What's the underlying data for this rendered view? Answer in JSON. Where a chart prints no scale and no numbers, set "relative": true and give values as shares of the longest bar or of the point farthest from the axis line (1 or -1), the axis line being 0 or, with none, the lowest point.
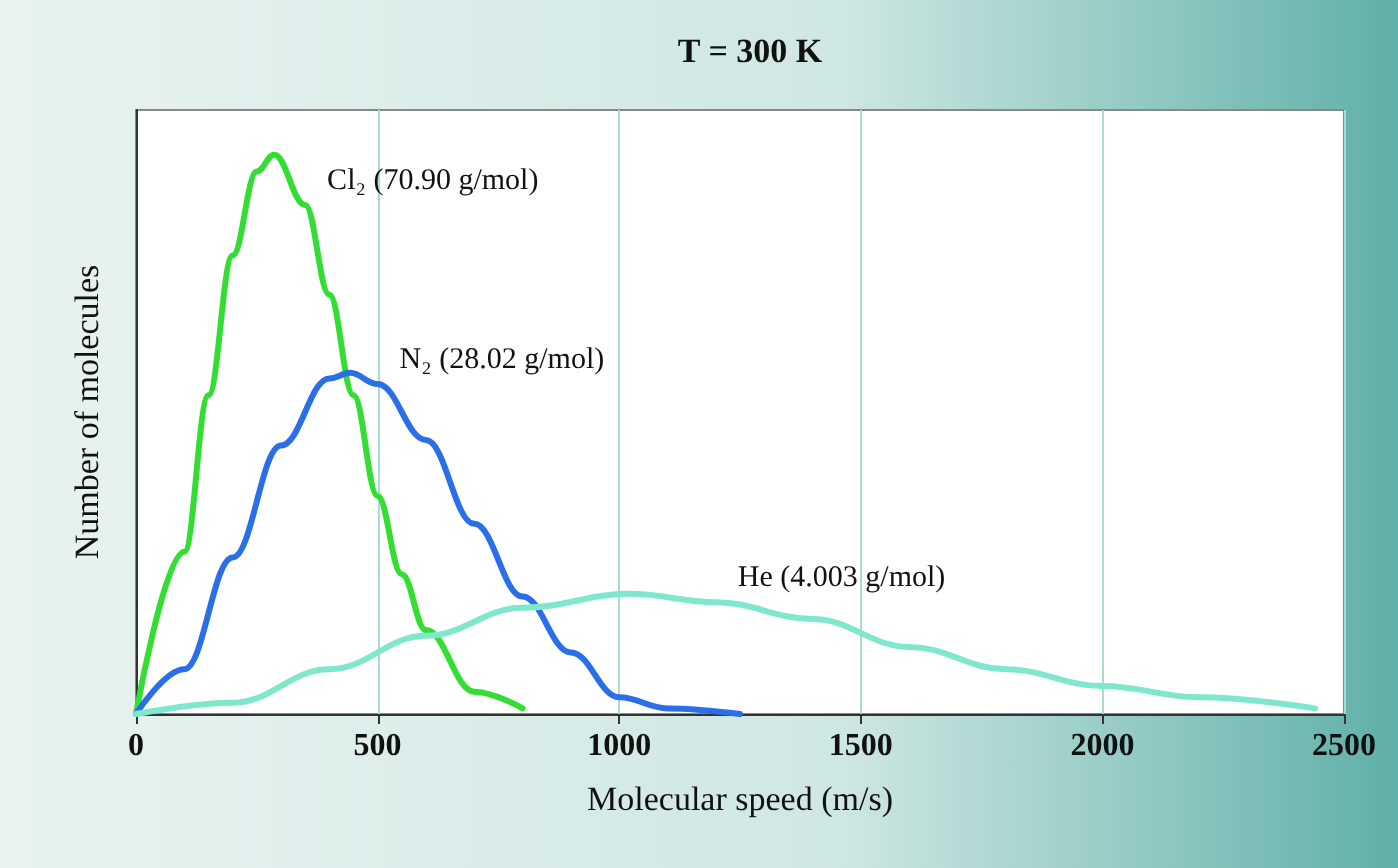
{
  "chart_data": {
    "type": "line",
    "title": "T = 300 K",
    "xlabel": "Molecular speed (m/s)",
    "ylabel": "Number of molecules",
    "relative": true,
    "xlim": [
      0,
      2500
    ],
    "xticks": [
      0,
      500,
      1000,
      1500,
      2000,
      2500
    ],
    "grid": "x",
    "tick_labels": "x",
    "series": [
      {
        "name": "Cl₂ (70.90 g/mol)",
        "color": "#33dd33",
        "x": [
          0,
          100,
          150,
          200,
          250,
          286,
          350,
          400,
          450,
          500,
          550,
          600,
          700,
          800
        ],
        "values": [
          0,
          0.29,
          0.57,
          0.82,
          0.97,
          1,
          0.91,
          0.75,
          0.57,
          0.39,
          0.25,
          0.15,
          0.04,
          0.01
        ]
      },
      {
        "name": "N₂ (28.02 g/mol)",
        "color": "#2a6ee8",
        "x": [
          0,
          100,
          200,
          300,
          400,
          443,
          500,
          600,
          700,
          800,
          900,
          1000,
          1100,
          1250
        ],
        "values": [
          0,
          0.08,
          0.28,
          0.48,
          0.6,
          0.61,
          0.59,
          0.49,
          0.34,
          0.21,
          0.11,
          0.03,
          0.01,
          0
        ]
      },
      {
        "name": "He (4.003 g/mol)",
        "color": "#7fe8cc",
        "x": [
          0,
          200,
          400,
          600,
          800,
          1022,
          1200,
          1400,
          1600,
          1800,
          2000,
          2200,
          2440
        ],
        "values": [
          0,
          0.02,
          0.08,
          0.14,
          0.19,
          0.215,
          0.2,
          0.17,
          0.12,
          0.08,
          0.05,
          0.03,
          0.01
        ]
      }
    ]
  }
}
